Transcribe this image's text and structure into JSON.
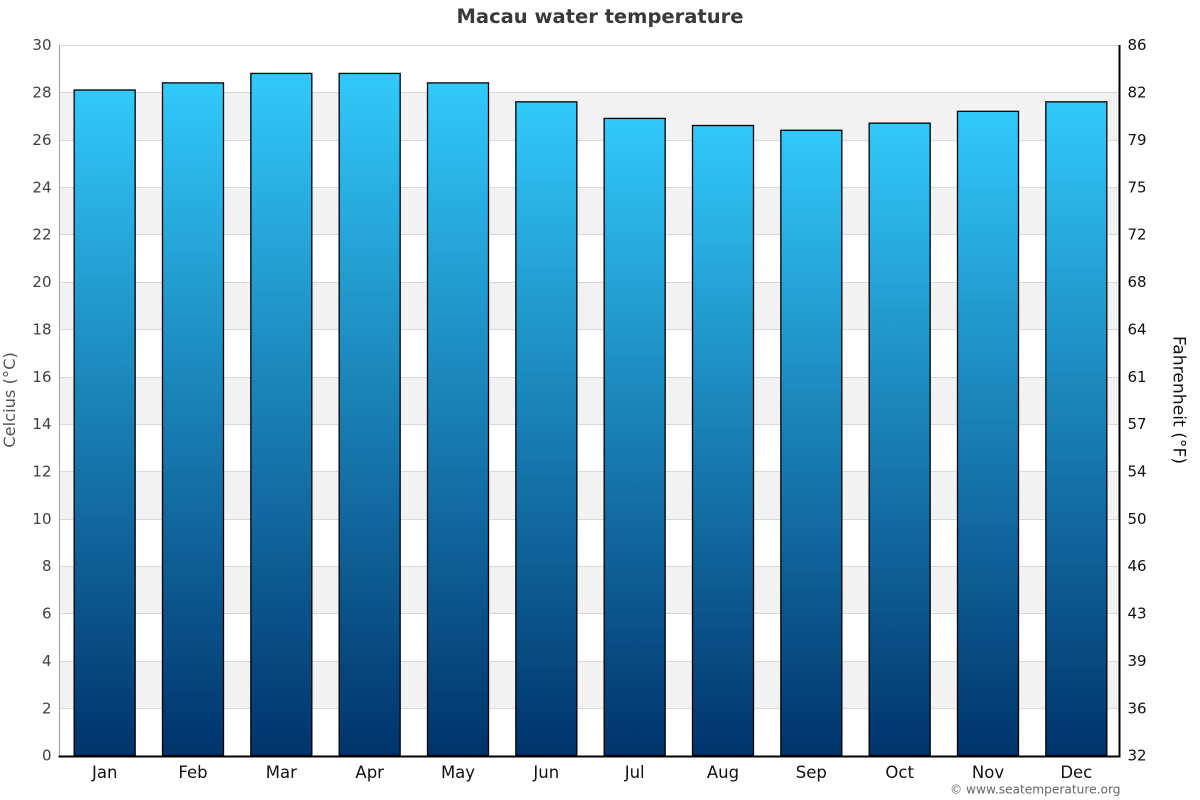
{
  "chart_data": {
    "type": "bar",
    "title": "Macau water temperature",
    "categories": [
      "Jan",
      "Feb",
      "Mar",
      "Apr",
      "May",
      "Jun",
      "Jul",
      "Aug",
      "Sep",
      "Oct",
      "Nov",
      "Dec"
    ],
    "values": [
      28.1,
      28.4,
      28.8,
      28.8,
      28.4,
      27.6,
      26.9,
      26.6,
      26.4,
      26.7,
      27.2,
      27.6
    ],
    "series_name": "water temperature",
    "xlabel": "",
    "ylabel_left": "Celcius (°C)",
    "ylabel_right": "Fahrenheit (°F)",
    "ylim": [
      0,
      30
    ],
    "ytick_step": 2,
    "yticks_left_labels": [
      "0",
      "2",
      "4",
      "6",
      "8",
      "10",
      "12",
      "14",
      "16",
      "18",
      "20",
      "22",
      "24",
      "26",
      "28",
      "30"
    ],
    "yticks_right_labels": [
      "32",
      "36",
      "39",
      "43",
      "46",
      "50",
      "54",
      "57",
      "61",
      "64",
      "68",
      "72",
      "75",
      "79",
      "82",
      "86"
    ],
    "grid": "horizontal gridlines with alternating bands",
    "legend": "none",
    "colors": {
      "bar_gradient_top": "#31c9fb",
      "bar_gradient_bottom": "#00336b",
      "bar_border": "#000000",
      "band_fill": "#f2f2f2",
      "gridline": "#d8d8d8",
      "left_axis_line": "#a0a0a0",
      "right_axis_line": "#000000",
      "bottom_axis_line": "#000000",
      "title_text": "#3a3a3a",
      "left_tick_text": "#404040",
      "right_tick_text": "#111111",
      "month_text": "#111111",
      "left_axis_title_text": "#555555",
      "right_axis_title_text": "#111111",
      "credit_text": "#666666"
    }
  },
  "credit": {
    "text": "© www.seatemperature.org"
  }
}
